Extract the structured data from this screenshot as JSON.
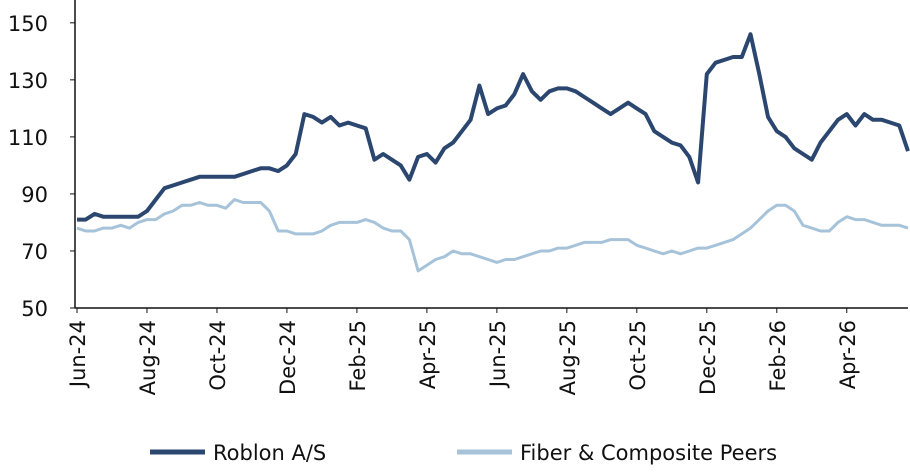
{
  "chart_data": {
    "type": "line",
    "x": [
      "Jun-24",
      null,
      null,
      null,
      null,
      null,
      null,
      null,
      "Aug-24",
      null,
      null,
      null,
      null,
      null,
      null,
      null,
      "Oct-24",
      null,
      null,
      null,
      null,
      null,
      null,
      null,
      "Dec-24",
      null,
      null,
      null,
      null,
      null,
      null,
      null,
      "Feb-25",
      null,
      null,
      null,
      null,
      null,
      null,
      null,
      "Apr-25",
      null,
      null,
      null,
      null,
      null,
      null,
      null,
      "Jun-25",
      null,
      null,
      null,
      null,
      null,
      null,
      null,
      "Aug-25",
      null,
      null,
      null,
      null,
      null,
      null,
      null,
      "Oct-25",
      null,
      null,
      null,
      null,
      null,
      null,
      null,
      "Dec-25",
      null,
      null,
      null,
      null,
      null,
      null,
      null,
      "Feb-26",
      null,
      null,
      null,
      null,
      null,
      null,
      null,
      "Apr-26",
      null,
      null,
      null,
      null,
      null,
      null,
      null
    ],
    "series": [
      {
        "name": "Roblon A/S",
        "color": "#2b4770",
        "values": [
          81,
          81,
          83,
          82,
          82,
          82,
          82,
          82,
          84,
          88,
          92,
          93,
          94,
          95,
          96,
          96,
          96,
          96,
          96,
          97,
          98,
          99,
          99,
          98,
          100,
          104,
          118,
          117,
          115,
          117,
          114,
          115,
          114,
          113,
          102,
          104,
          102,
          100,
          95,
          103,
          104,
          101,
          106,
          108,
          112,
          116,
          128,
          118,
          120,
          121,
          125,
          132,
          126,
          123,
          126,
          127,
          127,
          126,
          124,
          122,
          120,
          118,
          120,
          122,
          120,
          118,
          112,
          110,
          108,
          107,
          103,
          94,
          132,
          136,
          137,
          138,
          138,
          146,
          132,
          117,
          112,
          110,
          106,
          104,
          102,
          108,
          112,
          116,
          118,
          114,
          118,
          116,
          116,
          115,
          114,
          105
        ]
      },
      {
        "name": "Fiber & Composite Peers",
        "color": "#a6c3d9",
        "values": [
          78,
          77,
          77,
          78,
          78,
          79,
          78,
          80,
          81,
          81,
          83,
          84,
          86,
          86,
          87,
          86,
          86,
          85,
          88,
          87,
          87,
          87,
          84,
          77,
          77,
          76,
          76,
          76,
          77,
          79,
          80,
          80,
          80,
          81,
          80,
          78,
          77,
          77,
          74,
          63,
          65,
          67,
          68,
          70,
          69,
          69,
          68,
          67,
          66,
          67,
          67,
          68,
          69,
          70,
          70,
          71,
          71,
          72,
          73,
          73,
          73,
          74,
          74,
          74,
          72,
          71,
          70,
          69,
          70,
          69,
          70,
          71,
          71,
          72,
          73,
          74,
          76,
          78,
          81,
          84,
          86,
          86,
          84,
          79,
          78,
          77,
          77,
          80,
          82,
          81,
          81,
          80,
          79,
          79,
          79,
          78
        ]
      }
    ],
    "ylim": [
      50,
      158
    ],
    "yticks": [
      50,
      70,
      90,
      110,
      130,
      150
    ],
    "grid": false,
    "legend": "bottom"
  }
}
